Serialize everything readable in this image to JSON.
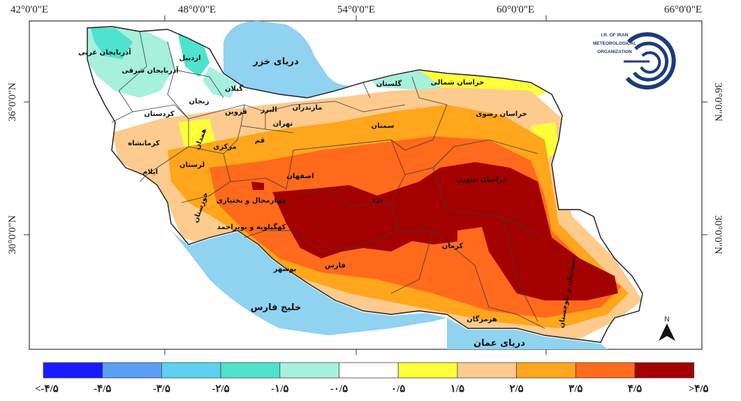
{
  "map": {
    "lon_labels": [
      "42°0'0\"E",
      "48°0'0\"E",
      "54°0'0\"E",
      "60°0'0\"E",
      "66°0'0\"E"
    ],
    "lat_labels_left": [
      "36°0'0\"N",
      "30°0'0\"N"
    ],
    "lat_labels_right": [
      "36°0'0\"N",
      "30°0'0\"N"
    ],
    "seas": {
      "caspian": "دریای خزر",
      "persian_gulf": "خلیج فارس",
      "oman_sea": "دریای عمان"
    },
    "provinces": [
      "آذربایجان غربی",
      "آذربایجان شرقی",
      "اردبیل",
      "زنجان",
      "گیلان",
      "مازندران",
      "گلستان",
      "خراسان شمالی",
      "خراسان رضوی",
      "سمنان",
      "قزوین",
      "البرز",
      "تهران",
      "قم",
      "مرکزی",
      "همدان",
      "کردستان",
      "کرمانشاه",
      "لرستان",
      "ایلام",
      "اصفهان",
      "خوزستان",
      "چهارمحال و بختیاری",
      "کهگیلویه و بویراحمد",
      "یزد",
      "خراسان جنوبی",
      "فارس",
      "بوشهر",
      "کرمان",
      "هرمزگان",
      "سیستان و بلوچستان"
    ],
    "north_arrow_label": "N",
    "colors": {
      "sea": "#8fd3f0",
      "border": "#3a3a3a"
    }
  },
  "logo": {
    "line1": "I.R. OF IRAN",
    "line2": "METEOROLOGICAL",
    "line3": "ORGANIZATION"
  },
  "legend": {
    "labels": [
      "<-۴/۵",
      "-۴/۵",
      "-۳/۵",
      "-۲/۵",
      "-۱/۵",
      "-۰/۵",
      "۰/۵",
      "۱/۵",
      "۲/۵",
      "۳/۵",
      "۴/۵",
      ">۴/۵"
    ],
    "colors": [
      "#1a1aff",
      "#5a9ef5",
      "#5ed0f2",
      "#4de3cf",
      "#a6f0dc",
      "#ffffff",
      "#ffff3a",
      "#fdcb8e",
      "#ffa61c",
      "#ff6a1c",
      "#a30000"
    ]
  }
}
